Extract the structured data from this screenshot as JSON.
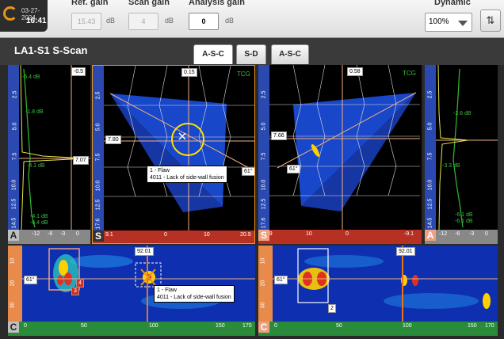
{
  "status": {
    "date": "03-27-2024",
    "time": "16:41"
  },
  "gains": {
    "ref": {
      "label": "Ref. gain",
      "value": "15.43",
      "unit": "dB"
    },
    "scan": {
      "label": "Scan gain",
      "value": "4",
      "unit": "dB"
    },
    "analysis": {
      "label": "Analysis gain",
      "value": "0",
      "unit": "dB"
    }
  },
  "dynamic": {
    "label": "Dynamic",
    "value": "100%"
  },
  "view_title": "LA1-S1 S-Scan",
  "tabs": [
    {
      "label": "A-S-C"
    },
    {
      "label": "S-D"
    },
    {
      "label": "A-S-C"
    }
  ],
  "panels": {
    "a_left": {
      "letter": "A",
      "top_value": "-0.5",
      "cursor_value": "7.07",
      "depth_ticks": [
        "2.5",
        "5.0",
        "7.5",
        "10.0",
        "12.5",
        "14.5"
      ],
      "amp_ticks": [
        "-12",
        "-6",
        "-3",
        "0"
      ],
      "db_labels": [
        "-5.4 dB",
        "-1.8 dB",
        "-4.1 dB",
        "-4.1 dB",
        "-6.4 dB"
      ]
    },
    "s_left": {
      "letter": "S",
      "top_value": "0.15",
      "cursor_value": "7.80",
      "angle_value": "61°",
      "tcg": "TCG",
      "depth_ticks": [
        "2.5",
        "5.0",
        "7.5",
        "10.0",
        "12.5",
        "14.5",
        "17.6"
      ],
      "x_ticks": [
        "9.1",
        "0",
        "10",
        "20.9"
      ]
    },
    "s_right": {
      "letter": "S",
      "top_value": "0.58",
      "cursor_value": "7.66",
      "angle_value": "61°",
      "tcg": "TCG",
      "depth_ticks": [
        "2.5",
        "5.0",
        "7.5",
        "10.0",
        "12.5",
        "14.5",
        "17.6"
      ],
      "x_ticks": [
        "20.9",
        "10",
        "0",
        "-9.1"
      ]
    },
    "a_right": {
      "letter": "A",
      "depth_ticks": [
        "2.5",
        "5.0",
        "7.5",
        "10.0",
        "12.5",
        "14.5"
      ],
      "amp_ticks": [
        "-12",
        "-6",
        "-3",
        "0"
      ],
      "db_labels": [
        "-2.6 dB",
        "-3.3 dB",
        "-6.1 dB",
        "-6.1 dB"
      ]
    },
    "c_left": {
      "letter": "C",
      "angle_value": "61°",
      "position_value": "92.01",
      "x_ticks": [
        "0",
        "50",
        "100",
        "150",
        "170"
      ],
      "y_ticks": [
        "10",
        "20",
        "30"
      ],
      "markers": [
        "3",
        "4"
      ]
    },
    "c_right": {
      "letter": "C",
      "angle_value": "61°",
      "position_value": "92.01",
      "x_ticks": [
        "0",
        "50",
        "100",
        "150",
        "170"
      ],
      "y_ticks": [
        "10",
        "20",
        "30"
      ],
      "markers": [
        "2"
      ]
    }
  },
  "flaw": {
    "title": "1 - Flaw",
    "description": "4011 - Lack of side-wall fusion"
  },
  "colors": {
    "accent": "#e8951c",
    "ruler_blue": "#2a4ab2",
    "ruler_green": "#2a8c3a",
    "ruler_red": "#b73024",
    "cursor": "#f0b080"
  }
}
